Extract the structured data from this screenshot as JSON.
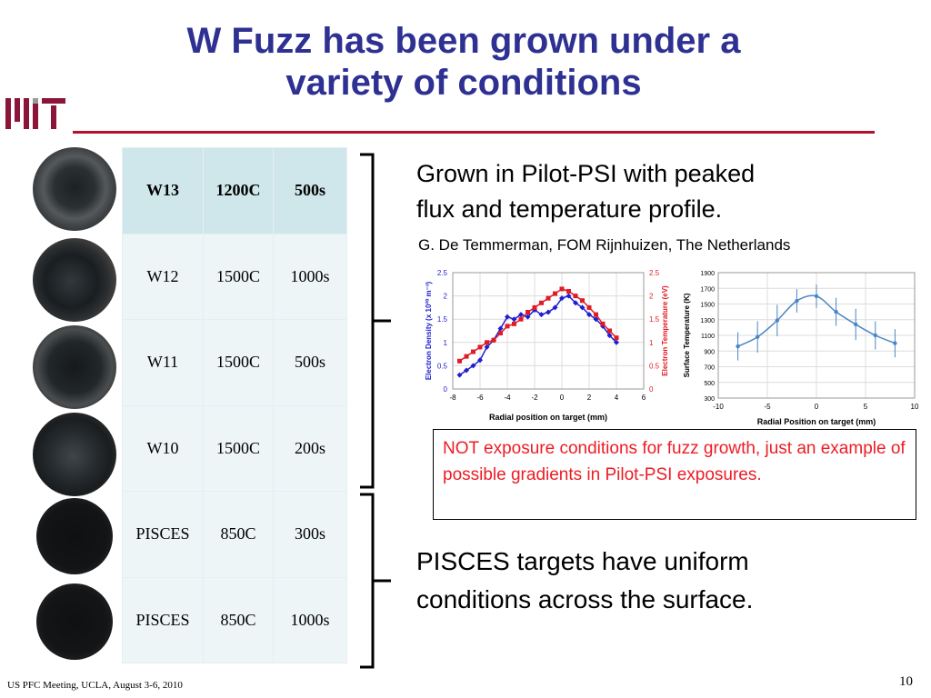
{
  "slide": {
    "title": "W Fuzz has been grown under a\nvariety of conditions",
    "logo_text": "MIT",
    "page_number": "10",
    "footer": "US PFC Meeting, UCLA, August 3-6, 2010"
  },
  "table": {
    "rows": [
      [
        "W13",
        "1200C",
        "500s"
      ],
      [
        "W12",
        "1500C",
        "1000s"
      ],
      [
        "W11",
        "1500C",
        "500s"
      ],
      [
        "W10",
        "1500C",
        "200s"
      ],
      [
        "PISCES",
        "850C",
        "300s"
      ],
      [
        "PISCES",
        "850C",
        "1000s"
      ]
    ]
  },
  "pilot_psi": {
    "text": "Grown in Pilot-PSI with peaked\nflux and temperature profile.",
    "credit": "G. De Temmerman, FOM Rijnhuizen, The Netherlands"
  },
  "note": "NOT exposure conditions for fuzz growth, just an example of possible gradients in Pilot-PSI exposures.",
  "pisces_text": "PISCES targets have uniform\nconditions across the surface.",
  "colors": {
    "title": "#2e3192",
    "rule": "#b3112e",
    "note_text": "#ee1c25",
    "density_series": "#1f1fd0",
    "temperature_series": "#e01b24",
    "surface_series": "#4a86c5"
  },
  "chart_data": [
    {
      "type": "line",
      "xlabel": "Radial position on target (mm)",
      "ylabel": "Electron Density (x 10²⁰ m⁻³)",
      "y2label": "Electron Temperature (eV)",
      "xlim": [
        -8,
        6
      ],
      "ylim": [
        0,
        2.5
      ],
      "y2lim": [
        0,
        2.5
      ],
      "xticks": [
        "-8",
        "-6",
        "-4",
        "-2",
        "0",
        "2",
        "4",
        "6"
      ],
      "yticks": [
        "0",
        "0.5",
        "1",
        "1.5",
        "2",
        "2.5"
      ],
      "y2ticks": [
        "0",
        "0.5",
        "1",
        "1.5",
        "2",
        "2.5"
      ],
      "grid": true,
      "series": [
        {
          "x": [
            -7.5,
            -7,
            -6.5,
            -6,
            -5.5,
            -5,
            -4.5,
            -4,
            -3.5,
            -3,
            -2.5,
            -2,
            -1.5,
            -1,
            -0.5,
            0,
            0.5,
            1,
            1.5,
            2,
            2.5,
            3,
            3.5,
            4
          ],
          "values": [
            0.3,
            0.4,
            0.5,
            0.62,
            0.9,
            1.05,
            1.3,
            1.55,
            1.5,
            1.6,
            1.55,
            1.7,
            1.6,
            1.65,
            1.75,
            1.95,
            2.0,
            1.85,
            1.75,
            1.6,
            1.5,
            1.35,
            1.15,
            1.0
          ]
        },
        {
          "x": [
            -7.5,
            -7,
            -6.5,
            -6,
            -5.5,
            -5,
            -4.5,
            -4,
            -3.5,
            -3,
            -2.5,
            -2,
            -1.5,
            -1,
            -0.5,
            0,
            0.5,
            1,
            1.5,
            2,
            2.5,
            3,
            3.5,
            4
          ],
          "values": [
            0.6,
            0.7,
            0.8,
            0.9,
            1.0,
            1.05,
            1.2,
            1.35,
            1.4,
            1.5,
            1.65,
            1.75,
            1.85,
            1.95,
            2.05,
            2.15,
            2.1,
            2.0,
            1.9,
            1.75,
            1.6,
            1.4,
            1.25,
            1.1
          ]
        }
      ]
    },
    {
      "type": "line",
      "xlabel": "Radial Position on target (mm)",
      "ylabel": "Surface Temperature (K)",
      "xlim": [
        -10,
        10
      ],
      "ylim": [
        300,
        1900
      ],
      "xticks": [
        "-10",
        "-5",
        "0",
        "5",
        "10"
      ],
      "yticks": [
        "300",
        "500",
        "700",
        "900",
        "1100",
        "1300",
        "1500",
        "1700",
        "1900"
      ],
      "grid": true,
      "series": [
        {
          "x": [
            -8,
            -6,
            -4,
            -2,
            0,
            2,
            4,
            6,
            8
          ],
          "values": [
            960,
            1080,
            1290,
            1540,
            1600,
            1400,
            1240,
            1100,
            1000
          ],
          "errors": [
            180,
            200,
            200,
            150,
            150,
            180,
            200,
            180,
            180
          ]
        }
      ]
    }
  ]
}
